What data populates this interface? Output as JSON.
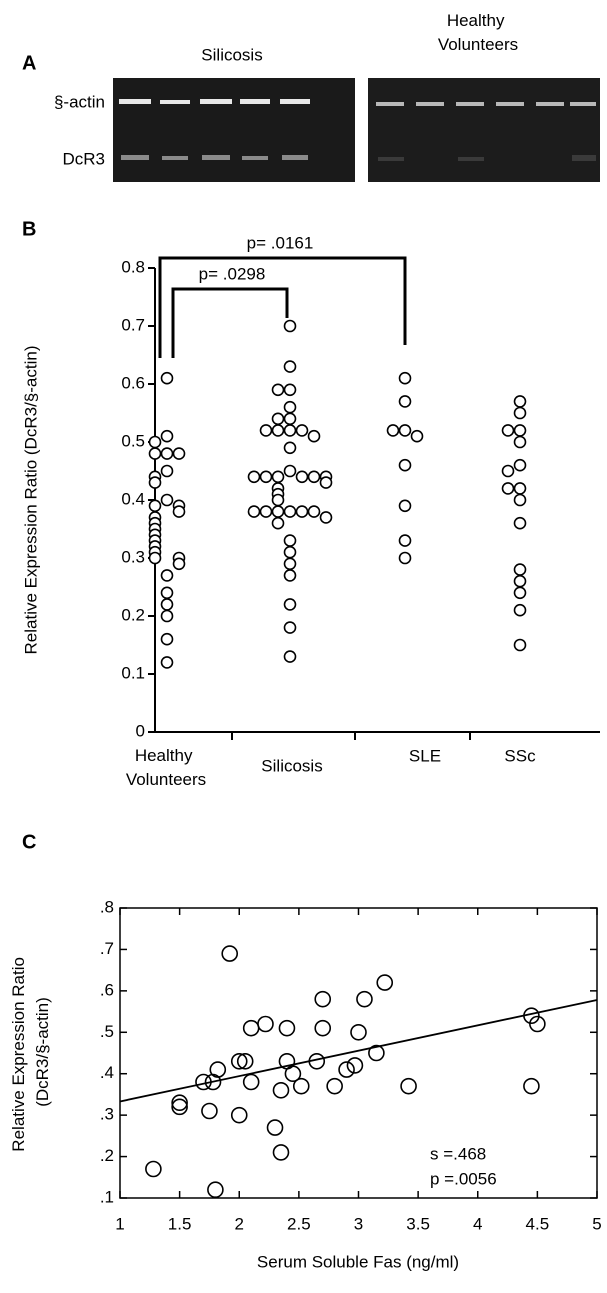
{
  "panel_a": {
    "label": "A",
    "columns": [
      "Silicosis",
      "Healthy Volunteers"
    ],
    "rows": [
      "§-actin",
      "DcR3"
    ]
  },
  "chart_data": [
    {
      "type": "dot",
      "label": "B",
      "ylabel": "Relative Expression Ratio (DcR3/§-actin)",
      "categories": [
        "Healthy Volunteers",
        "Silicosis",
        "SLE",
        "SSc"
      ],
      "values": [
        [
          0.61,
          0.51,
          0.5,
          0.48,
          0.48,
          0.48,
          0.45,
          0.44,
          0.43,
          0.4,
          0.39,
          0.39,
          0.38,
          0.37,
          0.36,
          0.35,
          0.34,
          0.33,
          0.32,
          0.31,
          0.3,
          0.3,
          0.29,
          0.27,
          0.24,
          0.22,
          0.2,
          0.16,
          0.12
        ],
        [
          0.7,
          0.63,
          0.59,
          0.59,
          0.56,
          0.54,
          0.54,
          0.52,
          0.52,
          0.52,
          0.52,
          0.51,
          0.49,
          0.45,
          0.44,
          0.44,
          0.44,
          0.44,
          0.44,
          0.44,
          0.43,
          0.42,
          0.41,
          0.4,
          0.38,
          0.38,
          0.38,
          0.38,
          0.38,
          0.38,
          0.37,
          0.36,
          0.33,
          0.31,
          0.29,
          0.27,
          0.22,
          0.18,
          0.13
        ],
        [
          0.61,
          0.57,
          0.52,
          0.52,
          0.51,
          0.46,
          0.39,
          0.33,
          0.3
        ],
        [
          0.57,
          0.55,
          0.52,
          0.52,
          0.5,
          0.46,
          0.45,
          0.42,
          0.42,
          0.4,
          0.36,
          0.28,
          0.26,
          0.24,
          0.21,
          0.15
        ]
      ],
      "ylim": [
        0,
        0.8
      ],
      "yticks": [
        0,
        0.1,
        0.2,
        0.3,
        0.4,
        0.5,
        0.6,
        0.7,
        0.8
      ],
      "annotations": [
        "p= .0161",
        "p= .0298"
      ]
    },
    {
      "type": "scatter",
      "label": "C",
      "xlabel": "Serum Soluble Fas (ng/ml)",
      "ylabel": "Relative Expression Ratio (DcR3/§-actin)",
      "x": [
        1.28,
        1.5,
        1.5,
        1.7,
        1.78,
        1.82,
        1.75,
        1.8,
        1.92,
        2.0,
        2.05,
        2.0,
        2.1,
        2.22,
        2.1,
        2.35,
        2.3,
        2.35,
        2.4,
        2.4,
        2.45,
        2.52,
        2.65,
        2.7,
        2.7,
        2.8,
        2.9,
        2.97,
        3.0,
        3.05,
        3.15,
        3.22,
        3.42,
        4.45,
        4.5,
        4.45
      ],
      "y": [
        0.17,
        0.33,
        0.32,
        0.38,
        0.38,
        0.41,
        0.31,
        0.12,
        0.69,
        0.43,
        0.43,
        0.3,
        0.51,
        0.52,
        0.38,
        0.36,
        0.27,
        0.21,
        0.51,
        0.43,
        0.4,
        0.37,
        0.43,
        0.58,
        0.51,
        0.37,
        0.41,
        0.42,
        0.5,
        0.58,
        0.45,
        0.62,
        0.37,
        0.54,
        0.52,
        0.37
      ],
      "fit": {
        "x": [
          1,
          5
        ],
        "y": [
          0.333,
          0.578
        ]
      },
      "xlim": [
        1,
        5
      ],
      "xticks": [
        1,
        1.5,
        2,
        2.5,
        3,
        3.5,
        4,
        4.5,
        5
      ],
      "ylim": [
        0.1,
        0.8
      ],
      "yticks": [
        {
          "value": 0.1,
          "label": ".1"
        },
        {
          "value": 0.2,
          "label": ".2"
        },
        {
          "value": 0.3,
          "label": ".3"
        },
        {
          "value": 0.4,
          "label": ".4"
        },
        {
          "value": 0.5,
          "label": ".5"
        },
        {
          "value": 0.6,
          "label": ".6"
        },
        {
          "value": 0.7,
          "label": ".7"
        },
        {
          "value": 0.8,
          "label": ".8"
        }
      ],
      "annotations": [
        "s =.468",
        "p =.0056"
      ]
    }
  ]
}
